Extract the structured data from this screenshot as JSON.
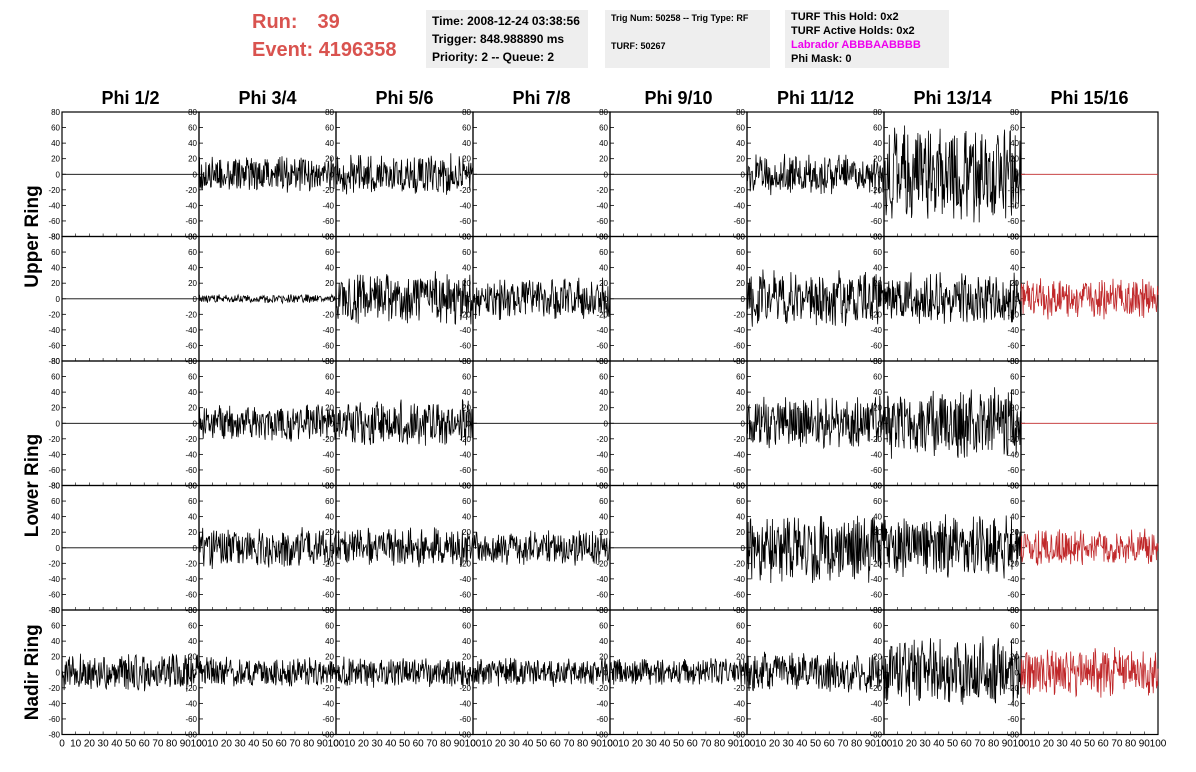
{
  "header": {
    "run_label": "Run:",
    "run_value": "39",
    "event_label": "Event:",
    "event_value": "4196358",
    "time_line": "Time: 2008-12-24 03:38:56",
    "trigger_line": "Trigger: 848.988890 ms",
    "priority_line": "Priority: 2 -- Queue: 2",
    "trig_line": "Trig Num: 50258 -- Trig Type: RF",
    "turf_line": "TURF: 50267",
    "hold_line": "TURF This Hold: 0x2",
    "active_holds_line": "TURF Active Holds: 0x2",
    "labrador_line": "Labrador ABBBAABBBB",
    "phi_mask_line": "Phi Mask: 0"
  },
  "colors": {
    "accent_red": "#d9534f",
    "labrador_magenta": "#ee00ee",
    "trace_black": "#000000",
    "trace_red": "#c0282a"
  },
  "chart_data": {
    "type": "line",
    "columns": [
      "Phi 1/2",
      "Phi 3/4",
      "Phi 5/6",
      "Phi 7/8",
      "Phi 9/10",
      "Phi 11/12",
      "Phi 13/14",
      "Phi 15/16"
    ],
    "ring_labels": [
      {
        "text": "Upper Ring",
        "rows": [
          0,
          1
        ]
      },
      {
        "text": "Lower Ring",
        "rows": [
          2,
          3
        ]
      },
      {
        "text": "Nadir Ring",
        "rows": [
          4
        ]
      }
    ],
    "ylim": [
      -80,
      80
    ],
    "y_ticks": [
      "80",
      "60",
      "40",
      "20",
      "0",
      "-20",
      "-40",
      "-60",
      "-80"
    ],
    "xlim": [
      0,
      100
    ],
    "x_ticks": [
      "0",
      "10",
      "20",
      "30",
      "40",
      "50",
      "60",
      "70",
      "80",
      "90",
      "100"
    ],
    "rows": [
      [
        {
          "amp": 0,
          "color": "black"
        },
        {
          "amp": 12,
          "color": "black"
        },
        {
          "amp": 14,
          "color": "black"
        },
        {
          "amp": 0,
          "color": "black"
        },
        {
          "amp": 0,
          "color": "black"
        },
        {
          "amp": 14,
          "color": "black"
        },
        {
          "amp": 35,
          "color": "black"
        },
        {
          "amp": 0,
          "color": "red"
        }
      ],
      [
        {
          "amp": 0,
          "color": "black"
        },
        {
          "amp": 3,
          "color": "black"
        },
        {
          "amp": 18,
          "color": "black"
        },
        {
          "amp": 14,
          "color": "black"
        },
        {
          "amp": 0,
          "color": "black"
        },
        {
          "amp": 20,
          "color": "black"
        },
        {
          "amp": 18,
          "color": "black"
        },
        {
          "amp": 14,
          "color": "red"
        }
      ],
      [
        {
          "amp": 0,
          "color": "black"
        },
        {
          "amp": 13,
          "color": "black"
        },
        {
          "amp": 16,
          "color": "black"
        },
        {
          "amp": 0,
          "color": "black"
        },
        {
          "amp": 0,
          "color": "black"
        },
        {
          "amp": 18,
          "color": "black"
        },
        {
          "amp": 24,
          "color": "black"
        },
        {
          "amp": 0,
          "color": "red"
        }
      ],
      [
        {
          "amp": 0,
          "color": "black"
        },
        {
          "amp": 14,
          "color": "black"
        },
        {
          "amp": 14,
          "color": "black"
        },
        {
          "amp": 12,
          "color": "black"
        },
        {
          "amp": 0,
          "color": "black"
        },
        {
          "amp": 25,
          "color": "black"
        },
        {
          "amp": 22,
          "color": "black"
        },
        {
          "amp": 13,
          "color": "red"
        }
      ],
      [
        {
          "amp": 13,
          "color": "black"
        },
        {
          "amp": 10,
          "color": "black"
        },
        {
          "amp": 11,
          "color": "black"
        },
        {
          "amp": 10,
          "color": "black"
        },
        {
          "amp": 10,
          "color": "black"
        },
        {
          "amp": 14,
          "color": "black"
        },
        {
          "amp": 24,
          "color": "black"
        },
        {
          "amp": 17,
          "color": "red"
        }
      ]
    ]
  }
}
